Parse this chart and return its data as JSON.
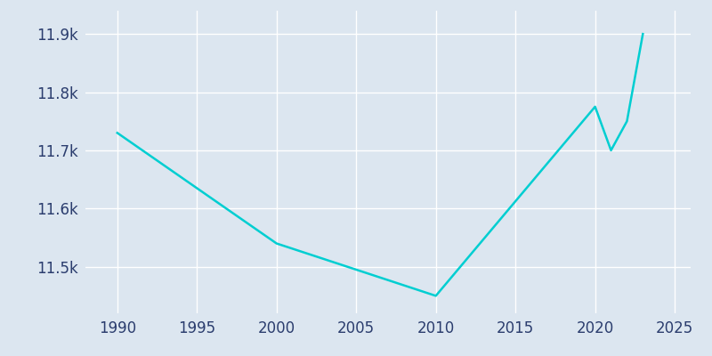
{
  "years": [
    1990,
    2000,
    2010,
    2020,
    2021,
    2022,
    2023
  ],
  "population": [
    11730,
    11540,
    11450,
    11775,
    11700,
    11750,
    11900
  ],
  "line_color": "#00CED1",
  "plot_background_color": "#dce6f0",
  "figure_background_color": "#dce6f0",
  "outer_background_color": "#dce6f0",
  "grid_color": "#ffffff",
  "tick_color": "#2b3d6e",
  "xlim": [
    1988,
    2026
  ],
  "ylim": [
    11420,
    11940
  ],
  "xticks": [
    1990,
    1995,
    2000,
    2005,
    2010,
    2015,
    2020,
    2025
  ],
  "yticks": [
    11500,
    11600,
    11700,
    11800,
    11900
  ],
  "ytick_labels": [
    "11.5k",
    "11.6k",
    "11.7k",
    "11.8k",
    "11.9k"
  ],
  "line_width": 1.8,
  "tick_fontsize": 12
}
